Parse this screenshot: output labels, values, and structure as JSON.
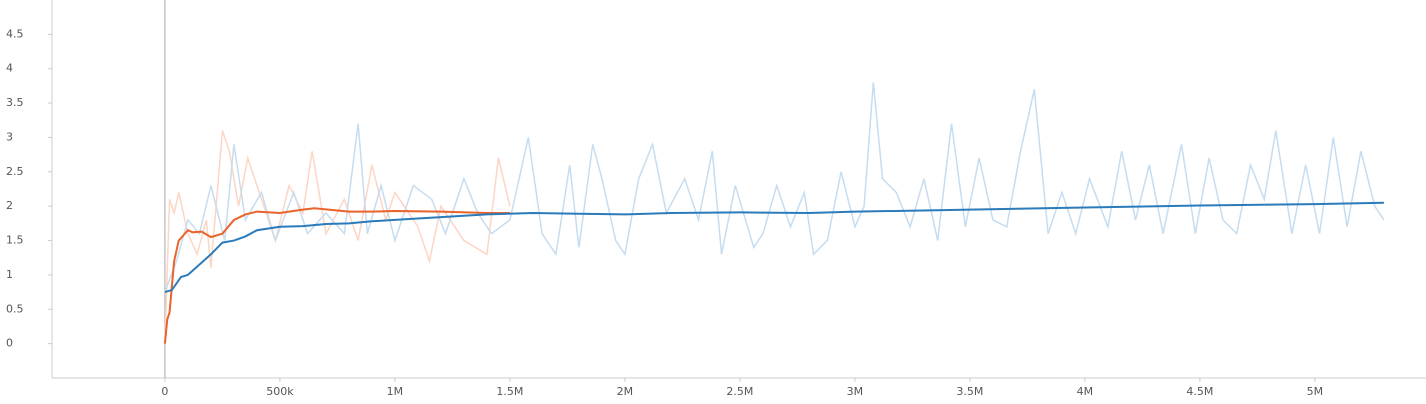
{
  "chart_data": {
    "type": "line",
    "xlim": [
      -491000,
      5483000
    ],
    "ylim": [
      -0.5,
      5
    ],
    "xticks": [
      0,
      {
        "value": 500000,
        "label": "500k"
      },
      {
        "value": 1000000,
        "label": "1M"
      },
      {
        "value": 1500000,
        "label": "1.5M"
      },
      {
        "value": 2000000,
        "label": "2M"
      },
      {
        "value": 2500000,
        "label": "2.5M"
      },
      {
        "value": 3000000,
        "label": "3M"
      },
      {
        "value": 3500000,
        "label": "3.5M"
      },
      {
        "value": 4000000,
        "label": "4M"
      },
      {
        "value": 4500000,
        "label": "4.5M"
      },
      {
        "value": 5000000,
        "label": "5M"
      }
    ],
    "yticks": [
      0,
      0.5,
      1,
      1.5,
      2,
      2.5,
      3,
      3.5,
      4,
      4.5
    ],
    "series": [
      {
        "color": "#fdd5c4",
        "x": [
          0,
          20000,
          40000,
          60000,
          100000,
          140000,
          180000,
          200000,
          250000,
          280000,
          320000,
          360000,
          420000,
          480000,
          540000,
          600000,
          640000,
          700000,
          780000,
          840000,
          900000,
          960000,
          1000000,
          1100000,
          1150000,
          1200000,
          1300000,
          1400000,
          1450000,
          1500000
        ],
        "values": [
          0,
          2.1,
          1.9,
          2.2,
          1.6,
          1.3,
          1.8,
          1.1,
          3.1,
          2.8,
          2.0,
          2.7,
          2.1,
          1.5,
          2.3,
          1.9,
          2.8,
          1.6,
          2.1,
          1.5,
          2.6,
          1.8,
          2.2,
          1.7,
          1.2,
          2.0,
          1.5,
          1.3,
          2.7,
          2.0
        ]
      },
      {
        "color": "#c6dcef",
        "x": [
          0,
          50000,
          100000,
          150000,
          200000,
          260000,
          300000,
          350000,
          420000,
          480000,
          560000,
          620000,
          700000,
          780000,
          840000,
          880000,
          940000,
          1000000,
          1080000,
          1160000,
          1220000,
          1300000,
          1360000,
          1420000,
          1500000,
          1580000,
          1640000,
          1700000,
          1760000,
          1800000,
          1860000,
          1900000,
          1960000,
          2000000,
          2060000,
          2120000,
          2180000,
          2260000,
          2320000,
          2380000,
          2420000,
          2480000,
          2560000,
          2600000,
          2660000,
          2720000,
          2780000,
          2820000,
          2880000,
          2940000,
          3000000,
          3040000,
          3080000,
          3120000,
          3180000,
          3240000,
          3300000,
          3360000,
          3420000,
          3480000,
          3540000,
          3600000,
          3660000,
          3720000,
          3780000,
          3840000,
          3900000,
          3960000,
          4020000,
          4100000,
          4160000,
          4220000,
          4280000,
          4340000,
          4420000,
          4480000,
          4540000,
          4600000,
          4660000,
          4720000,
          4780000,
          4830000,
          4900000,
          4960000,
          5020000,
          5080000,
          5140000,
          5200000,
          5260000,
          5300000
        ],
        "values": [
          0.75,
          1.2,
          1.8,
          1.6,
          2.3,
          1.5,
          2.9,
          1.8,
          2.2,
          1.5,
          2.2,
          1.6,
          1.9,
          1.6,
          3.2,
          1.6,
          2.3,
          1.5,
          2.3,
          2.1,
          1.6,
          2.4,
          1.9,
          1.6,
          1.8,
          3.0,
          1.6,
          1.3,
          2.6,
          1.4,
          2.9,
          2.4,
          1.5,
          1.3,
          2.4,
          2.9,
          1.9,
          2.4,
          1.8,
          2.8,
          1.3,
          2.3,
          1.4,
          1.6,
          2.3,
          1.7,
          2.2,
          1.3,
          1.5,
          2.5,
          1.7,
          2.0,
          3.8,
          2.4,
          2.2,
          1.7,
          2.4,
          1.5,
          3.2,
          1.7,
          2.7,
          1.8,
          1.7,
          2.8,
          3.7,
          1.6,
          2.2,
          1.6,
          2.4,
          1.7,
          2.8,
          1.8,
          2.6,
          1.6,
          2.9,
          1.6,
          2.7,
          1.8,
          1.6,
          2.6,
          2.1,
          3.1,
          1.6,
          2.6,
          1.6,
          3.0,
          1.7,
          2.8,
          2.0,
          1.8
        ]
      },
      {
        "color": "#e9632b",
        "x": [
          0,
          10000,
          20000,
          40000,
          60000,
          100000,
          120000,
          160000,
          200000,
          250000,
          300000,
          350000,
          400000,
          500000,
          600000,
          650000,
          800000,
          900000,
          1000000,
          1200000,
          1400000,
          1500000
        ],
        "values": [
          0,
          0.35,
          0.45,
          1.2,
          1.5,
          1.65,
          1.62,
          1.63,
          1.55,
          1.6,
          1.8,
          1.88,
          1.92,
          1.9,
          1.95,
          1.97,
          1.92,
          1.92,
          1.93,
          1.92,
          1.9,
          1.9
        ]
      },
      {
        "color": "#2b7bba",
        "x": [
          0,
          30000,
          70000,
          100000,
          200000,
          250000,
          300000,
          350000,
          400000,
          500000,
          600000,
          700000,
          800000,
          900000,
          1000000,
          1200000,
          1400000,
          1600000,
          1800000,
          2000000,
          2200000,
          2500000,
          2800000,
          3000000,
          3500000,
          4000000,
          4500000,
          5000000,
          5300000
        ],
        "values": [
          0.75,
          0.78,
          0.97,
          1.0,
          1.3,
          1.47,
          1.5,
          1.56,
          1.65,
          1.7,
          1.71,
          1.74,
          1.75,
          1.78,
          1.8,
          1.84,
          1.88,
          1.9,
          1.89,
          1.88,
          1.9,
          1.91,
          1.9,
          1.92,
          1.95,
          1.98,
          2.01,
          2.03,
          2.05
        ]
      }
    ]
  }
}
